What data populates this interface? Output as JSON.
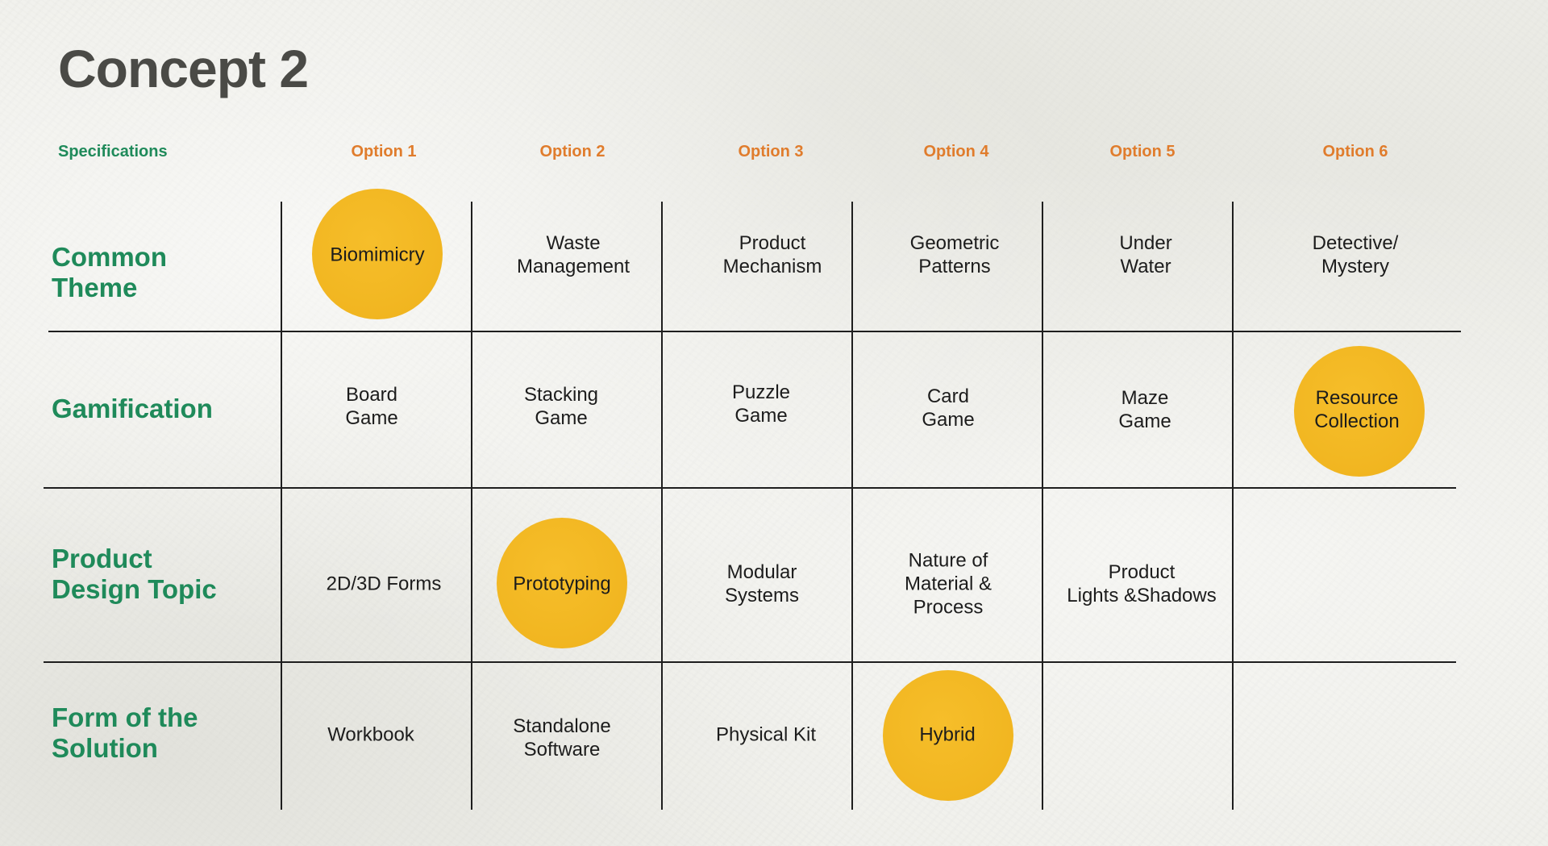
{
  "title": "Concept 2",
  "header": {
    "specifications_label": "Specifications",
    "options": [
      "Option 1",
      "Option 2",
      "Option 3",
      "Option 4",
      "Option 5",
      "Option 6"
    ]
  },
  "rows": [
    {
      "label": [
        "Common",
        "Theme"
      ],
      "cells": [
        [
          "Biomimicry"
        ],
        [
          "Waste",
          "Management"
        ],
        [
          "Product",
          "Mechanism"
        ],
        [
          "Geometric",
          "Patterns"
        ],
        [
          "Under",
          "Water"
        ],
        [
          "Detective/",
          "Mystery"
        ]
      ],
      "highlighted_option": 1
    },
    {
      "label": [
        "Gamification"
      ],
      "cells": [
        [
          "Board",
          "Game"
        ],
        [
          "Stacking",
          "Game"
        ],
        [
          "Puzzle",
          "Game"
        ],
        [
          "Card",
          "Game"
        ],
        [
          "Maze",
          "Game"
        ],
        [
          "Resource",
          "Collection"
        ]
      ],
      "highlighted_option": 6
    },
    {
      "label": [
        "Product",
        "Design Topic"
      ],
      "cells": [
        [
          "2D/3D Forms"
        ],
        [
          "Prototyping"
        ],
        [
          "Modular",
          "Systems"
        ],
        [
          "Nature of",
          "Material &",
          "Process"
        ],
        [
          "Product",
          "Lights &Shadows"
        ],
        []
      ],
      "highlighted_option": 2
    },
    {
      "label": [
        "Form of the",
        "Solution"
      ],
      "cells": [
        [
          "Workbook"
        ],
        [
          "Standalone",
          "Software"
        ],
        [
          "Physical Kit"
        ],
        [
          "Hybrid"
        ],
        [],
        []
      ],
      "highlighted_option": 4
    }
  ],
  "colors": {
    "title": "#4a4a46",
    "specification_green": "#1f8a5a",
    "option_orange": "#e07c2c",
    "highlight_yellow": "#f2b722",
    "grid_line": "#1e1e1e",
    "background": "#efefea"
  }
}
